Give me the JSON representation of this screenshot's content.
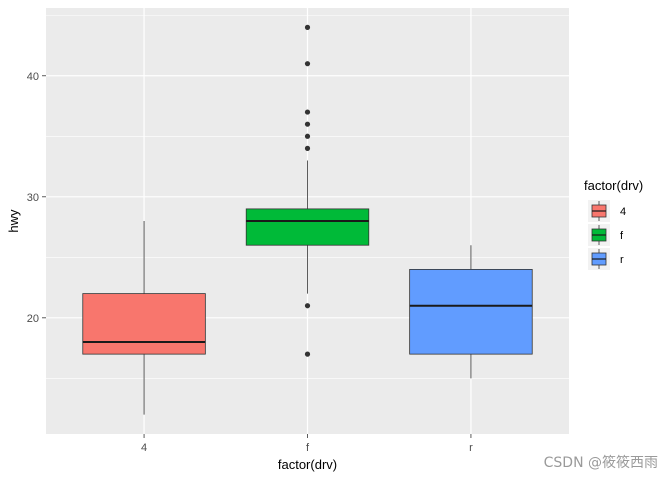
{
  "chart_data": {
    "type": "boxplot",
    "xlabel": "factor(drv)",
    "ylabel": "hwy",
    "categories": [
      "4",
      "f",
      "r"
    ],
    "ylim": [
      10.4,
      45.6
    ],
    "yticks": [
      20,
      30,
      40
    ],
    "grid": true,
    "boxes": [
      {
        "category": "4",
        "whisker_low": 12,
        "q1": 17,
        "median": 18,
        "q3": 22,
        "whisker_high": 28,
        "outliers": [],
        "color": "#F8766D"
      },
      {
        "category": "f",
        "whisker_low": 22,
        "q1": 26,
        "median": 28,
        "q3": 29,
        "whisker_high": 33,
        "outliers": [
          17,
          21,
          34,
          35,
          36,
          37,
          41,
          44
        ],
        "color": "#00BA38"
      },
      {
        "category": "r",
        "whisker_low": 15,
        "q1": 17,
        "median": 21,
        "q3": 24,
        "whisker_high": 26,
        "outliers": [],
        "color": "#619CFF"
      }
    ],
    "legend": {
      "title": "factor(drv)",
      "position": "right",
      "entries": [
        {
          "label": "4",
          "color": "#F8766D"
        },
        {
          "label": "f",
          "color": "#00BA38"
        },
        {
          "label": "r",
          "color": "#619CFF"
        }
      ]
    }
  },
  "watermark": "CSDN @筱筱西雨"
}
